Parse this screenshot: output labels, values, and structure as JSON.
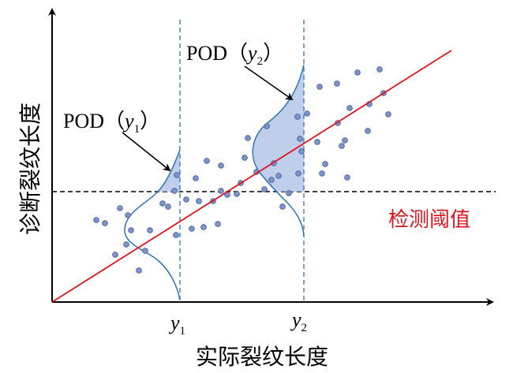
{
  "labels": {
    "x_axis": "实际裂纹长度",
    "y_axis": "诊断裂纹长度",
    "threshold": "检测阈值",
    "pod_prefix": "POD（",
    "pod_suffix": "）",
    "y_var": "y",
    "sub_1": "1",
    "sub_2": "2"
  },
  "colors": {
    "axis": "#000000",
    "regression_line": "#e0141e",
    "threshold_line": "#000000",
    "distribution_curve": "#2e75b6",
    "distribution_fill": "#b4c7e7",
    "dashed_marker": "#2e75b6",
    "points_fill": "#7f93c7",
    "points_stroke": "#3c56a0",
    "threshold_text": "#e0141e"
  }
}
